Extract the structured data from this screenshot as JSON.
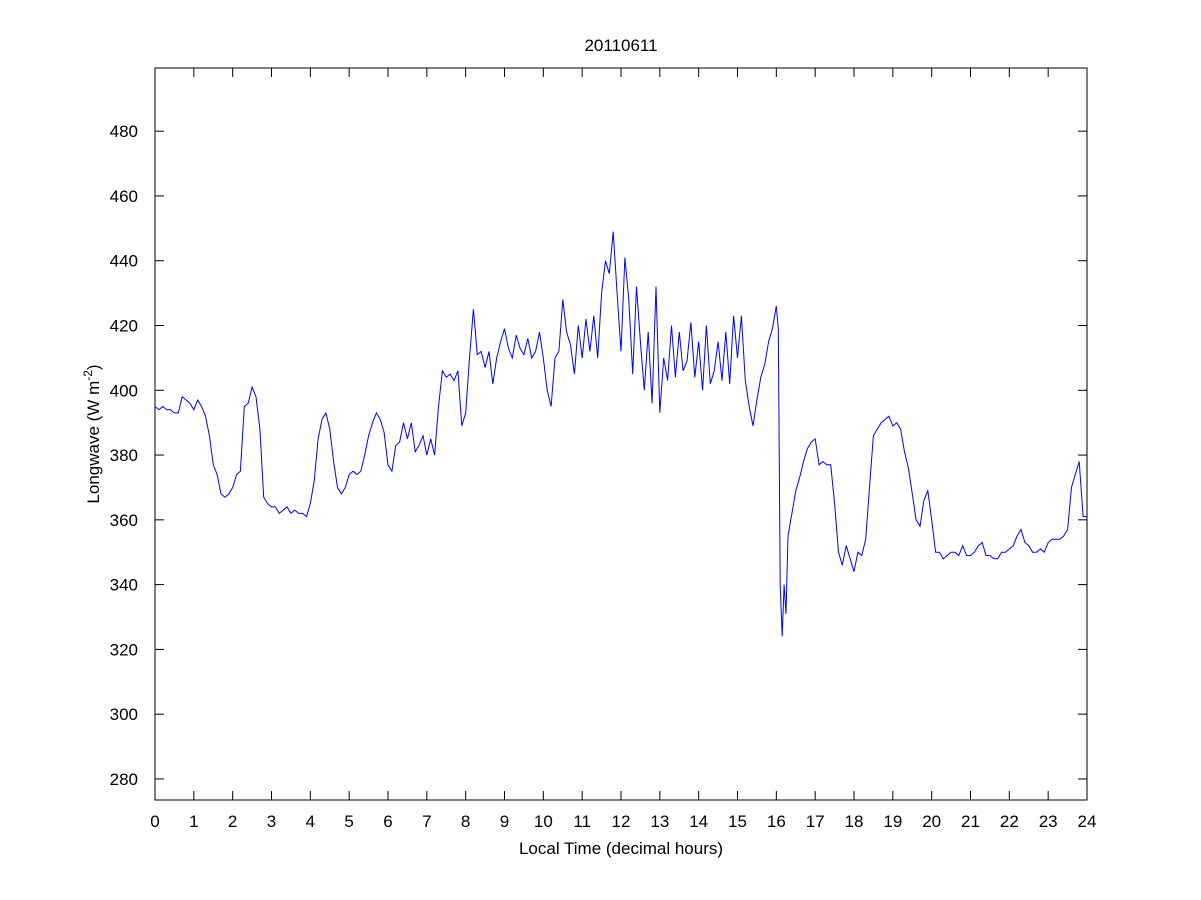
{
  "chart_data": {
    "type": "line",
    "title": "20110611",
    "xlabel": "Local Time (decimal hours)",
    "ylabel_main": "Longwave (W m",
    "ylabel_sup": "-2",
    "ylabel_close": ")",
    "xlim": [
      0,
      24
    ],
    "ylim": [
      273.5,
      499.5
    ],
    "xticks": [
      "0",
      "1",
      "2",
      "3",
      "4",
      "5",
      "6",
      "7",
      "8",
      "9",
      "10",
      "11",
      "12",
      "13",
      "14",
      "15",
      "16",
      "17",
      "18",
      "19",
      "20",
      "21",
      "22",
      "23",
      "24"
    ],
    "yticks": [
      "280",
      "300",
      "320",
      "340",
      "360",
      "380",
      "400",
      "420",
      "440",
      "460",
      "480"
    ],
    "grid": false,
    "line_color": "#0000ff",
    "series": [
      {
        "name": "Longwave",
        "points": [
          [
            0,
            395
          ],
          [
            0.1,
            394
          ],
          [
            0.2,
            395
          ],
          [
            0.3,
            394
          ],
          [
            0.4,
            394
          ],
          [
            0.5,
            393
          ],
          [
            0.6,
            393
          ],
          [
            0.7,
            398
          ],
          [
            0.8,
            397
          ],
          [
            0.9,
            396
          ],
          [
            1.0,
            394
          ],
          [
            1.1,
            397
          ],
          [
            1.2,
            395
          ],
          [
            1.3,
            392
          ],
          [
            1.4,
            386
          ],
          [
            1.5,
            377
          ],
          [
            1.6,
            374
          ],
          [
            1.7,
            368
          ],
          [
            1.8,
            367
          ],
          [
            1.9,
            368
          ],
          [
            2.0,
            370
          ],
          [
            2.1,
            374
          ],
          [
            2.2,
            375
          ],
          [
            2.3,
            395
          ],
          [
            2.4,
            396
          ],
          [
            2.5,
            401
          ],
          [
            2.6,
            398
          ],
          [
            2.7,
            388
          ],
          [
            2.8,
            367
          ],
          [
            2.9,
            365
          ],
          [
            3.0,
            364
          ],
          [
            3.1,
            364
          ],
          [
            3.2,
            362
          ],
          [
            3.3,
            363
          ],
          [
            3.4,
            364
          ],
          [
            3.5,
            362
          ],
          [
            3.6,
            363
          ],
          [
            3.7,
            362
          ],
          [
            3.8,
            362
          ],
          [
            3.9,
            361
          ],
          [
            4.0,
            365
          ],
          [
            4.1,
            372
          ],
          [
            4.2,
            385
          ],
          [
            4.3,
            391
          ],
          [
            4.4,
            393
          ],
          [
            4.5,
            388
          ],
          [
            4.6,
            378
          ],
          [
            4.7,
            370
          ],
          [
            4.8,
            368
          ],
          [
            4.9,
            370
          ],
          [
            5.0,
            374
          ],
          [
            5.1,
            375
          ],
          [
            5.2,
            374
          ],
          [
            5.3,
            375
          ],
          [
            5.4,
            380
          ],
          [
            5.5,
            386
          ],
          [
            5.6,
            390
          ],
          [
            5.7,
            393
          ],
          [
            5.8,
            391
          ],
          [
            5.9,
            387
          ],
          [
            6.0,
            377
          ],
          [
            6.1,
            375
          ],
          [
            6.2,
            383
          ],
          [
            6.3,
            384
          ],
          [
            6.4,
            390
          ],
          [
            6.5,
            385
          ],
          [
            6.6,
            390
          ],
          [
            6.7,
            381
          ],
          [
            6.8,
            383
          ],
          [
            6.9,
            386
          ],
          [
            7.0,
            380
          ],
          [
            7.1,
            385
          ],
          [
            7.2,
            380
          ],
          [
            7.3,
            395
          ],
          [
            7.4,
            406
          ],
          [
            7.5,
            404
          ],
          [
            7.6,
            405
          ],
          [
            7.7,
            403
          ],
          [
            7.8,
            406
          ],
          [
            7.9,
            389
          ],
          [
            8.0,
            393
          ],
          [
            8.1,
            410
          ],
          [
            8.2,
            425
          ],
          [
            8.3,
            411
          ],
          [
            8.4,
            412
          ],
          [
            8.5,
            407
          ],
          [
            8.6,
            412
          ],
          [
            8.7,
            402
          ],
          [
            8.8,
            410
          ],
          [
            8.9,
            415
          ],
          [
            9.0,
            419
          ],
          [
            9.1,
            413
          ],
          [
            9.2,
            410
          ],
          [
            9.3,
            417
          ],
          [
            9.4,
            413
          ],
          [
            9.5,
            411
          ],
          [
            9.6,
            416
          ],
          [
            9.7,
            410
          ],
          [
            9.8,
            412
          ],
          [
            9.9,
            418
          ],
          [
            10.0,
            410
          ],
          [
            10.1,
            400
          ],
          [
            10.2,
            395
          ],
          [
            10.3,
            410
          ],
          [
            10.4,
            412
          ],
          [
            10.5,
            428
          ],
          [
            10.6,
            418
          ],
          [
            10.7,
            414
          ],
          [
            10.8,
            405
          ],
          [
            10.9,
            420
          ],
          [
            11.0,
            410
          ],
          [
            11.1,
            422
          ],
          [
            11.2,
            412
          ],
          [
            11.3,
            423
          ],
          [
            11.4,
            410
          ],
          [
            11.5,
            430
          ],
          [
            11.6,
            440
          ],
          [
            11.7,
            436
          ],
          [
            11.8,
            449
          ],
          [
            11.9,
            430
          ],
          [
            12.0,
            412
          ],
          [
            12.1,
            441
          ],
          [
            12.2,
            428
          ],
          [
            12.3,
            405
          ],
          [
            12.4,
            432
          ],
          [
            12.5,
            415
          ],
          [
            12.6,
            400
          ],
          [
            12.7,
            418
          ],
          [
            12.8,
            396
          ],
          [
            12.9,
            432
          ],
          [
            13.0,
            393
          ],
          [
            13.1,
            410
          ],
          [
            13.2,
            403
          ],
          [
            13.3,
            420
          ],
          [
            13.4,
            404
          ],
          [
            13.5,
            418
          ],
          [
            13.6,
            406
          ],
          [
            13.7,
            409
          ],
          [
            13.8,
            421
          ],
          [
            13.9,
            404
          ],
          [
            14.0,
            415
          ],
          [
            14.1,
            400
          ],
          [
            14.2,
            420
          ],
          [
            14.3,
            402
          ],
          [
            14.4,
            406
          ],
          [
            14.5,
            415
          ],
          [
            14.6,
            403
          ],
          [
            14.7,
            418
          ],
          [
            14.8,
            402
          ],
          [
            14.9,
            423
          ],
          [
            15.0,
            410
          ],
          [
            15.1,
            423
          ],
          [
            15.2,
            403
          ],
          [
            15.3,
            395
          ],
          [
            15.4,
            389
          ],
          [
            15.5,
            397
          ],
          [
            15.6,
            404
          ],
          [
            15.7,
            408
          ],
          [
            15.8,
            415
          ],
          [
            15.9,
            419
          ],
          [
            16.0,
            426
          ],
          [
            16.05,
            419
          ],
          [
            16.1,
            340
          ],
          [
            16.15,
            324
          ],
          [
            16.2,
            340
          ],
          [
            16.25,
            331
          ],
          [
            16.3,
            355
          ],
          [
            16.4,
            362
          ],
          [
            16.5,
            369
          ],
          [
            16.6,
            373
          ],
          [
            16.7,
            378
          ],
          [
            16.8,
            382
          ],
          [
            16.9,
            384
          ],
          [
            17.0,
            385
          ],
          [
            17.1,
            377
          ],
          [
            17.2,
            378
          ],
          [
            17.3,
            377
          ],
          [
            17.4,
            377
          ],
          [
            17.5,
            365
          ],
          [
            17.6,
            350
          ],
          [
            17.7,
            346
          ],
          [
            17.8,
            352
          ],
          [
            17.9,
            348
          ],
          [
            18.0,
            344
          ],
          [
            18.1,
            350
          ],
          [
            18.2,
            349
          ],
          [
            18.3,
            354
          ],
          [
            18.4,
            370
          ],
          [
            18.5,
            386
          ],
          [
            18.6,
            388
          ],
          [
            18.7,
            390
          ],
          [
            18.8,
            391
          ],
          [
            18.9,
            392
          ],
          [
            19.0,
            389
          ],
          [
            19.1,
            390
          ],
          [
            19.2,
            388
          ],
          [
            19.3,
            381
          ],
          [
            19.4,
            376
          ],
          [
            19.5,
            368
          ],
          [
            19.6,
            360
          ],
          [
            19.7,
            358
          ],
          [
            19.8,
            366
          ],
          [
            19.9,
            369
          ],
          [
            20.0,
            360
          ],
          [
            20.1,
            350
          ],
          [
            20.2,
            350
          ],
          [
            20.3,
            348
          ],
          [
            20.4,
            349
          ],
          [
            20.5,
            350
          ],
          [
            20.6,
            350
          ],
          [
            20.7,
            349
          ],
          [
            20.8,
            352
          ],
          [
            20.9,
            349
          ],
          [
            21.0,
            349
          ],
          [
            21.1,
            350
          ],
          [
            21.2,
            352
          ],
          [
            21.3,
            353
          ],
          [
            21.4,
            349
          ],
          [
            21.5,
            349
          ],
          [
            21.6,
            348
          ],
          [
            21.7,
            348
          ],
          [
            21.8,
            350
          ],
          [
            21.9,
            350
          ],
          [
            22.0,
            351
          ],
          [
            22.1,
            352
          ],
          [
            22.2,
            355
          ],
          [
            22.3,
            357
          ],
          [
            22.4,
            353
          ],
          [
            22.5,
            352
          ],
          [
            22.6,
            350
          ],
          [
            22.7,
            350
          ],
          [
            22.8,
            351
          ],
          [
            22.9,
            350
          ],
          [
            23.0,
            353
          ],
          [
            23.1,
            354
          ],
          [
            23.2,
            354
          ],
          [
            23.3,
            354
          ],
          [
            23.4,
            355
          ],
          [
            23.5,
            357
          ],
          [
            23.6,
            370
          ],
          [
            23.7,
            374
          ],
          [
            23.8,
            378
          ],
          [
            23.9,
            361
          ],
          [
            24.0,
            361
          ]
        ]
      }
    ]
  }
}
